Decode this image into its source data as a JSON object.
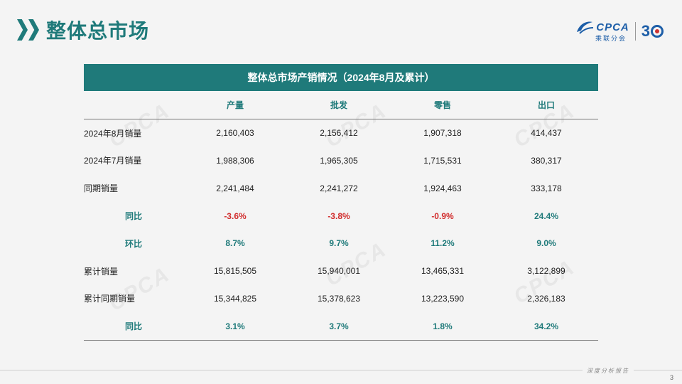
{
  "page": {
    "title": "整体总市场",
    "number": "3",
    "footer": "深度分析报告"
  },
  "logo": {
    "brand": "CPCA",
    "sub": "乘联分会",
    "anniversary_digit": "3"
  },
  "watermark": "CPCA",
  "table": {
    "title": "整体总市场产销情况（2024年8月及累计）",
    "columns": [
      "",
      "产量",
      "批发",
      "零售",
      "出口"
    ],
    "rows": [
      {
        "label": "2024年8月销量",
        "values": [
          "2,160,403",
          "2,156,412",
          "1,907,318",
          "414,437"
        ],
        "type": "data"
      },
      {
        "label": "2024年7月销量",
        "values": [
          "1,988,306",
          "1,965,305",
          "1,715,531",
          "380,317"
        ],
        "type": "data"
      },
      {
        "label": "同期销量",
        "values": [
          "2,241,484",
          "2,241,272",
          "1,924,463",
          "333,178"
        ],
        "type": "data"
      },
      {
        "label": "同比",
        "values": [
          "-3.6%",
          "-3.8%",
          "-0.9%",
          "24.4%"
        ],
        "type": "metric"
      },
      {
        "label": "环比",
        "values": [
          "8.7%",
          "9.7%",
          "11.2%",
          "9.0%"
        ],
        "type": "metric"
      },
      {
        "label": "累计销量",
        "values": [
          "15,815,505",
          "15,940,001",
          "13,465,331",
          "3,122,899"
        ],
        "type": "data"
      },
      {
        "label": "累计同期销量",
        "values": [
          "15,344,825",
          "15,378,623",
          "13,223,590",
          "2,326,183"
        ],
        "type": "data"
      },
      {
        "label": "同比",
        "values": [
          "3.1%",
          "3.7%",
          "1.8%",
          "34.2%"
        ],
        "type": "metric"
      }
    ]
  },
  "colors": {
    "accent": "#1f7a7a",
    "negative": "#d12b2b"
  }
}
